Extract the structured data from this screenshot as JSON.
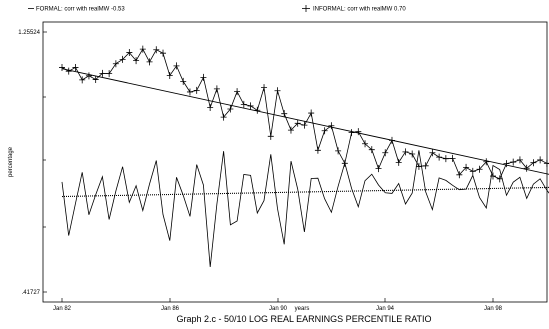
{
  "chart_data": {
    "type": "line",
    "title": "Graph 2.c - 50/10 LOG REAL EARNINGS PERCENTILE RATIO",
    "xlabel": "years",
    "ylabel": "percentage",
    "x_ticks": [
      "Jan 82",
      "Jan 86",
      "Jan 90",
      "Jan 94",
      "Jan 98"
    ],
    "y_ticks": [
      "1.25524",
      ".41727"
    ],
    "x_range": [
      1982.0,
      2001.5
    ],
    "ylim": [
      0.41727,
      1.25524
    ],
    "frequency": "monthly, every 3rd month shown (quarterly samples)",
    "x_start": "Jan 82",
    "series": [
      {
        "name": "FORMAL: corr with realMW -0.53",
        "marker": "none",
        "values": [
          0.772,
          0.599,
          0.703,
          0.803,
          0.666,
          0.731,
          0.789,
          0.651,
          0.743,
          0.821,
          0.706,
          0.76,
          0.68,
          0.765,
          0.841,
          0.667,
          0.583,
          0.787,
          0.729,
          0.661,
          0.828,
          0.762,
          0.498,
          0.701,
          0.871,
          0.634,
          0.646,
          0.796,
          0.793,
          0.672,
          0.712,
          0.861,
          0.686,
          0.571,
          0.839,
          0.749,
          0.611,
          0.783,
          0.784,
          0.718,
          0.674,
          0.758,
          0.833,
          0.751,
          0.692,
          0.776,
          0.797,
          0.762,
          0.737,
          0.735,
          0.767,
          0.701,
          0.736,
          0.874,
          0.74,
          0.683,
          0.785,
          0.777,
          0.761,
          0.747,
          0.749,
          0.793,
          0.722,
          0.688,
          0.825,
          0.812,
          0.729,
          0.771,
          0.787,
          0.719,
          0.765,
          0.782,
          0.745,
          0.718,
          0.737,
          0.701,
          0.722,
          0.71,
          0.704,
          0.668
        ]
      },
      {
        "name": "INFORMAL: corr with realMW 0.70",
        "marker": "plus",
        "values": [
          1.141,
          1.129,
          1.141,
          1.101,
          1.114,
          1.102,
          1.122,
          1.121,
          1.153,
          1.167,
          1.189,
          1.163,
          1.2,
          1.159,
          1.198,
          1.187,
          1.115,
          1.146,
          1.096,
          1.062,
          1.067,
          1.109,
          1.012,
          1.072,
          0.981,
          1.007,
          1.063,
          1.022,
          1.017,
          1.003,
          1.076,
          0.919,
          1.066,
          0.992,
          0.939,
          0.961,
          0.955,
          0.994,
          0.874,
          0.937,
          0.953,
          0.872,
          0.832,
          0.931,
          0.934,
          0.895,
          0.876,
          0.815,
          0.866,
          0.906,
          0.835,
          0.869,
          0.862,
          0.822,
          0.824,
          0.866,
          0.852,
          0.847,
          0.848,
          0.795,
          0.819,
          0.806,
          0.813,
          0.837,
          0.791,
          0.782,
          0.831,
          0.836,
          0.843,
          0.816,
          0.834,
          0.843,
          0.832,
          0.828,
          0.822,
          0.876,
          0.853,
          0.864,
          0.879,
          0.869
        ]
      },
      {
        "name": "FORMAL trend",
        "style": "dotted",
        "values": [
          0.725,
          0.757
        ]
      },
      {
        "name": "INFORMAL trend",
        "style": "solid",
        "values": [
          1.137,
          0.765
        ]
      }
    ],
    "grid": false,
    "legend": "top"
  },
  "colors": {
    "line": "#000000",
    "background": "#ffffff"
  }
}
